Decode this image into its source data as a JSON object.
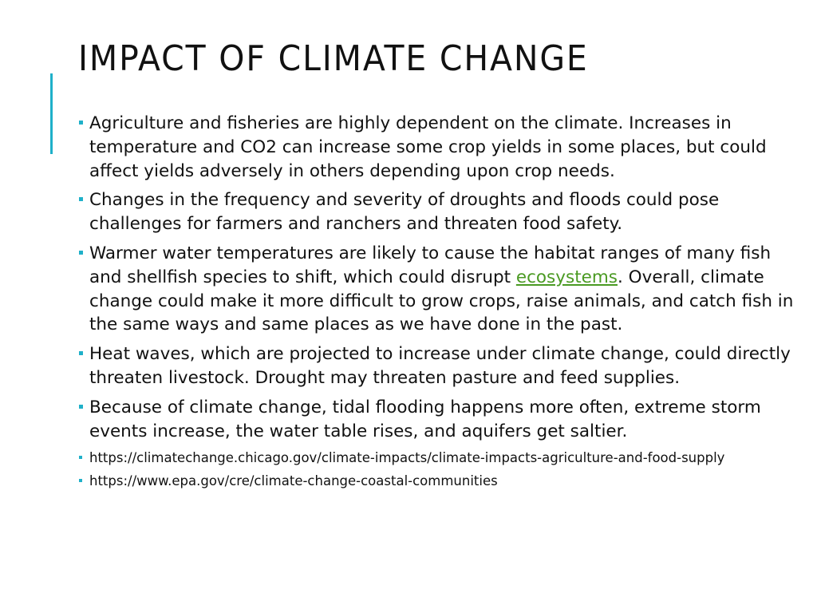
{
  "slide": {
    "title": "IMPACT OF CLIMATE CHANGE",
    "bullets": [
      {
        "text": "Agriculture and fisheries are highly dependent on the climate. Increases in temperature and CO2 can increase some crop yields in some places, but could affect yields adversely in others depending upon crop needs."
      },
      {
        "text": "Changes in the frequency and severity of droughts and floods could pose challenges for farmers and ranchers and threaten food safety."
      },
      {
        "text_before": "Warmer water temperatures are likely to cause the habitat ranges of many fish and shellfish species to shift, which could disrupt ",
        "link_text": "ecosystems",
        "text_after": ". Overall, climate change could make it more difficult to grow crops, raise animals, and catch fish in the same ways and same places as we have done in the past."
      },
      {
        "text": "Heat waves, which are projected to increase under climate change, could directly threaten livestock. Drought may threaten pasture and feed supplies."
      },
      {
        "text": "Because of climate change, tidal flooding happens more often, extreme storm events increase, the water table rises, and aquifers get saltier."
      }
    ],
    "sources": [
      "https://climatechange.chicago.gov/climate-impacts/climate-impacts-agriculture-and-food-supply",
      "https://www.epa.gov/cre/climate-change-coastal-communities"
    ]
  },
  "colors": {
    "accent": "#1fb0c9",
    "link": "#4a9a22",
    "text": "#111111",
    "background": "#ffffff"
  }
}
